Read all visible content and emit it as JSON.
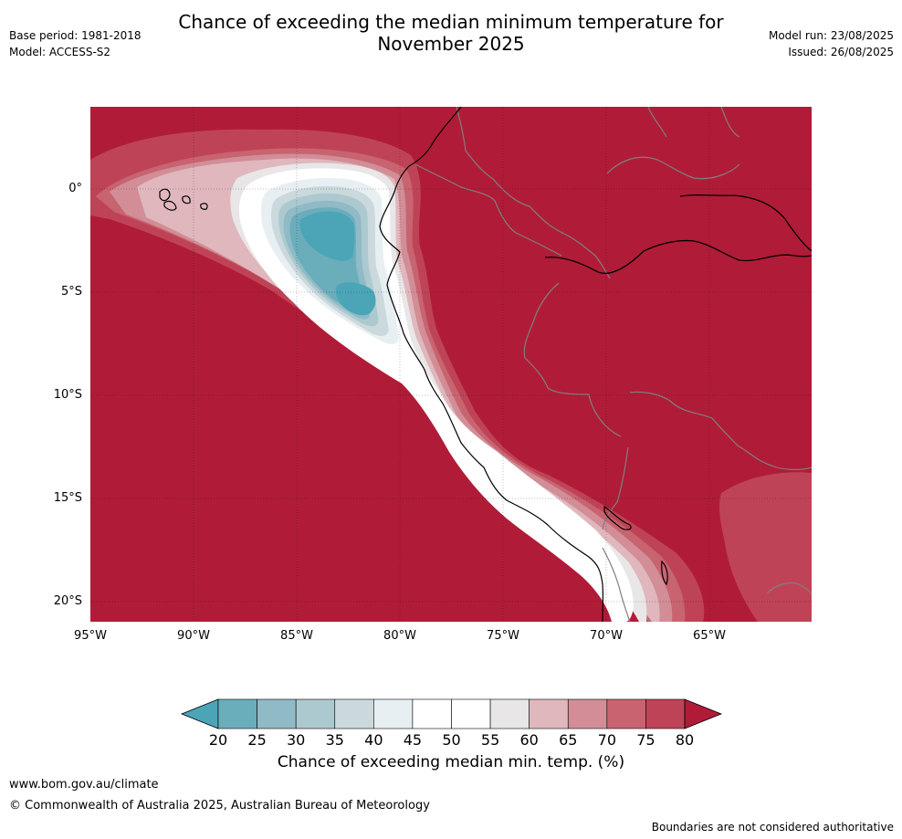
{
  "header": {
    "title_line1": "Chance of exceeding the median minimum temperature for",
    "title_line2": "November 2025",
    "base_period": "Base period: 1981-2018",
    "model": "Model: ACCESS-S2",
    "model_run": "Model run: 23/08/2025",
    "issued": "Issued: 26/08/2025"
  },
  "map": {
    "lat_ticks": [
      "0°",
      "5°S",
      "10°S",
      "15°S",
      "20°S"
    ],
    "lon_ticks": [
      "95°W",
      "90°W",
      "85°W",
      "80°W",
      "75°W",
      "70°W",
      "65°W"
    ],
    "background_color": "#b01c38",
    "coast_color": "#000000",
    "border_color": "#7f7f7f"
  },
  "colorbar": {
    "label": "Chance of exceeding median min. temp. (%)",
    "ticks": [
      "20",
      "25",
      "30",
      "35",
      "40",
      "45",
      "50",
      "55",
      "60",
      "65",
      "70",
      "75",
      "80"
    ],
    "colors": [
      "#4ba5b6",
      "#6aadbb",
      "#8fbac6",
      "#acc9cf",
      "#cbd9dc",
      "#e8eff2",
      "#ffffff",
      "#ffffff",
      "#e9e6e7",
      "#dfb7bd",
      "#d28d97",
      "#c76470",
      "#bf4356",
      "#b01c38"
    ]
  },
  "footer": {
    "url": "www.bom.gov.au/climate",
    "copyright": "© Commonwealth of Australia 2025, Australian Bureau of Meteorology",
    "note": "Boundaries are not considered authoritative"
  }
}
